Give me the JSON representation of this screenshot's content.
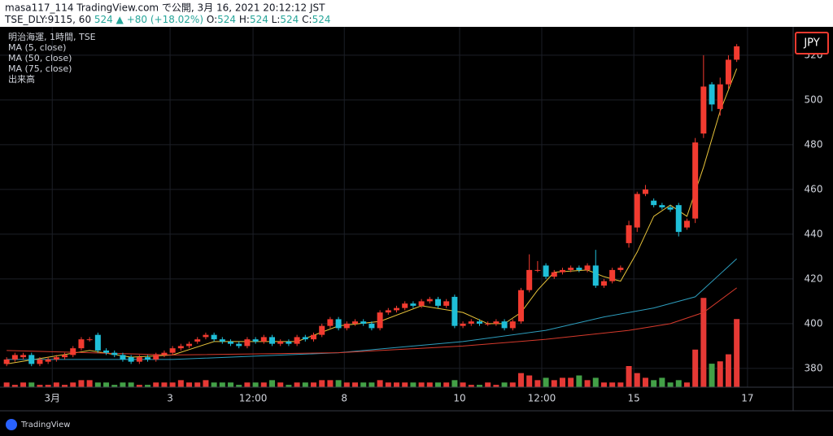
{
  "header": {
    "title": "masa117_114 TradingView.com で公開, 3月 16, 2021 20:12:12 JST",
    "symbol": "TSE_DLY:9115, 60",
    "last": "524",
    "arrow": "▲",
    "change": "+80 (+18.02%)",
    "ohlc": [
      {
        "label": "O:",
        "value": "524"
      },
      {
        "label": "H:",
        "value": "524"
      },
      {
        "label": "L:",
        "value": "524"
      },
      {
        "label": "C:",
        "value": "524"
      }
    ]
  },
  "legend": [
    "明治海運, 1時間, TSE",
    "MA (5, close)",
    "MA (50, close)",
    "MA (75, close)",
    "出来高"
  ],
  "currency": "JPY",
  "footer": "TradingView",
  "chart_data": {
    "type": "candlestick",
    "up_color": "#f23b30",
    "down_color": "#1fbfd8",
    "volume_up_color": "#e53935",
    "volume_down_color": "#43a047",
    "grid": true,
    "xlim": [
      -0.8,
      94.8
    ],
    "ylim": [
      371.6,
      532.7
    ],
    "vlim": [
      0,
      45
    ],
    "yticks": [
      380,
      400,
      420,
      440,
      460,
      480,
      500,
      520
    ],
    "xticks": [
      {
        "value": 5.5,
        "label": "3月"
      },
      {
        "value": 19.7,
        "label": "3"
      },
      {
        "value": 29.7,
        "label": "12:00"
      },
      {
        "value": 40.7,
        "label": "8"
      },
      {
        "value": 54.6,
        "label": "10"
      },
      {
        "value": 64.5,
        "label": "12:00"
      },
      {
        "value": 75.6,
        "label": "15"
      },
      {
        "value": 89.3,
        "label": "17"
      }
    ],
    "open": [
      382,
      384,
      385,
      386,
      382,
      383,
      384,
      385,
      386,
      389,
      393,
      395,
      388,
      387,
      386,
      385,
      383,
      385,
      384,
      386,
      387,
      389,
      390,
      392,
      394,
      395,
      393,
      392,
      391,
      390,
      393,
      392,
      394,
      391,
      392,
      391,
      394,
      393,
      395,
      399,
      402,
      398,
      400,
      401,
      400,
      398,
      405,
      406,
      407,
      409,
      408,
      410,
      411,
      408,
      412,
      399,
      400,
      401,
      400,
      400,
      401,
      398,
      401,
      415,
      424,
      426,
      421,
      423,
      424,
      425,
      424,
      426,
      417,
      419,
      424,
      436,
      443,
      458,
      455,
      453,
      452,
      453,
      443,
      447,
      485,
      507,
      496,
      507,
      518
    ],
    "high": [
      385,
      387,
      387,
      387,
      385,
      385,
      386,
      387,
      390,
      394,
      394,
      396,
      389,
      388,
      387,
      386,
      386,
      386,
      387,
      388,
      390,
      391,
      392,
      394,
      396,
      396,
      394,
      393,
      392,
      394,
      394,
      395,
      395,
      393,
      393,
      395,
      395,
      396,
      400,
      403,
      403,
      401,
      402,
      402,
      401,
      406,
      407,
      408,
      410,
      410,
      411,
      412,
      412,
      411,
      413,
      401,
      402,
      402,
      401,
      402,
      402,
      402,
      416,
      431,
      428,
      427,
      424,
      425,
      426,
      426,
      427,
      433,
      420,
      425,
      426,
      446,
      459,
      462,
      456,
      454,
      453,
      454,
      447,
      483,
      520,
      508,
      510,
      520,
      525
    ],
    "low": [
      381,
      383,
      384,
      381,
      381,
      382,
      383,
      384,
      385,
      388,
      392,
      387,
      386,
      385,
      383,
      382,
      382,
      383,
      383,
      385,
      386,
      388,
      389,
      391,
      393,
      392,
      391,
      390,
      389,
      389,
      391,
      391,
      390,
      390,
      390,
      390,
      392,
      392,
      394,
      398,
      397,
      397,
      399,
      399,
      397,
      397,
      404,
      405,
      406,
      407,
      407,
      409,
      407,
      407,
      398,
      398,
      399,
      399,
      399,
      399,
      397,
      397,
      400,
      414,
      423,
      420,
      420,
      422,
      423,
      423,
      423,
      416,
      416,
      418,
      423,
      434,
      441,
      457,
      452,
      451,
      450,
      439,
      442,
      445,
      483,
      495,
      493,
      505,
      517
    ],
    "close": [
      384,
      386,
      386,
      382,
      384,
      384,
      385,
      386,
      389,
      393,
      393,
      388,
      387,
      386,
      384,
      383,
      385,
      384,
      386,
      387,
      389,
      390,
      391,
      393,
      395,
      393,
      392,
      391,
      390,
      393,
      392,
      394,
      391,
      392,
      391,
      394,
      393,
      395,
      399,
      402,
      398,
      400,
      401,
      400,
      398,
      405,
      406,
      407,
      409,
      408,
      410,
      411,
      408,
      410,
      399,
      400,
      401,
      400,
      400,
      401,
      398,
      401,
      415,
      424,
      424,
      421,
      423,
      424,
      425,
      424,
      426,
      417,
      419,
      424,
      425,
      444,
      458,
      460,
      453,
      452,
      451,
      441,
      446,
      481,
      506,
      498,
      507,
      518,
      524
    ],
    "volume": [
      2,
      1,
      2,
      2,
      1,
      1,
      2,
      1,
      2,
      3,
      3,
      2,
      2,
      1,
      2,
      2,
      1,
      1,
      2,
      2,
      2,
      3,
      2,
      2,
      3,
      2,
      2,
      2,
      1,
      2,
      2,
      2,
      3,
      2,
      1,
      2,
      2,
      2,
      3,
      3,
      3,
      2,
      2,
      2,
      2,
      3,
      2,
      2,
      2,
      2,
      2,
      2,
      2,
      2,
      3,
      2,
      1,
      1,
      2,
      1,
      2,
      2,
      6,
      5,
      3,
      4,
      3,
      4,
      4,
      5,
      3,
      4,
      2,
      2,
      2,
      9,
      6,
      4,
      3,
      4,
      2,
      3,
      2,
      16,
      38,
      10,
      11,
      14,
      29
    ],
    "series": [
      {
        "name": "MA (5, close)",
        "color": "#e8c33a",
        "x": [
          0,
          10,
          15,
          20,
          25,
          30,
          35,
          40,
          45,
          50,
          55,
          58,
          60,
          62,
          64,
          66,
          70,
          72,
          74,
          76,
          78,
          80,
          82,
          84,
          86,
          88
        ],
        "values": [
          382,
          388,
          385,
          386,
          392,
          392,
          392,
          399,
          401,
          408,
          405,
          400,
          400,
          405,
          415,
          423,
          424,
          421,
          419,
          432,
          448,
          453,
          448,
          470,
          495,
          514
        ]
      },
      {
        "name": "MA (50, close)",
        "color": "#2d9dbd",
        "x": [
          0,
          20,
          40,
          55,
          65,
          72,
          78,
          83,
          88
        ],
        "values": [
          384,
          384,
          387,
          392,
          397,
          403,
          407,
          412,
          429
        ]
      },
      {
        "name": "MA (75, close)",
        "color": "#d63a2c",
        "x": [
          0,
          20,
          40,
          55,
          65,
          75,
          80,
          84,
          88
        ],
        "values": [
          388,
          386,
          387,
          390,
          393,
          397,
          400,
          405,
          416
        ]
      }
    ]
  }
}
